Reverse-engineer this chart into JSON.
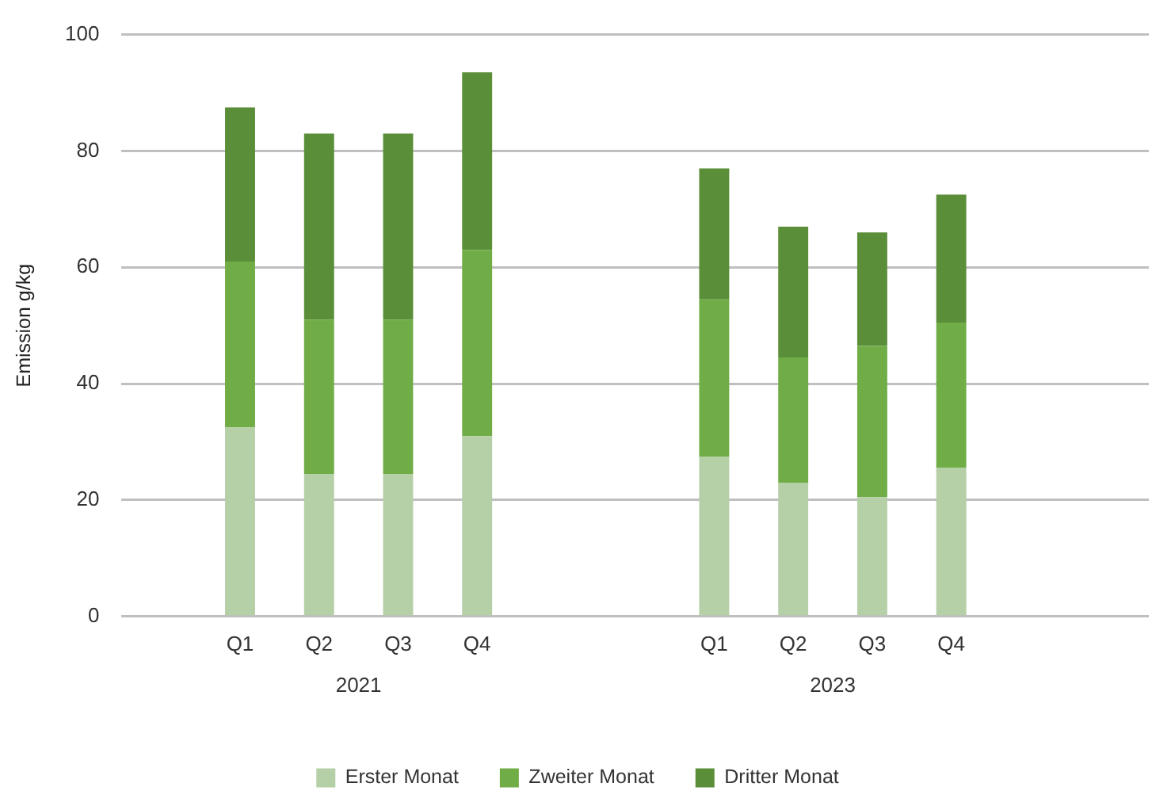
{
  "chart_data": {
    "type": "bar",
    "stacked": true,
    "ylabel": "Emission g/kg",
    "categories": [
      null,
      "Q1",
      "Q2",
      "Q3",
      "Q4",
      null,
      null,
      "Q1",
      "Q2",
      "Q3",
      "Q4",
      null,
      null
    ],
    "annotations": [
      "2021",
      "2023"
    ],
    "series": [
      {
        "name": "Erster Monat",
        "color": "#b5cfa7",
        "values": [
          null,
          32.5,
          24.5,
          24.5,
          31,
          null,
          null,
          27.5,
          23,
          20.5,
          25.5,
          null,
          null
        ]
      },
      {
        "name": "Zweiter Monat",
        "color": "#70ad47",
        "values": [
          null,
          28.5,
          26.5,
          26.5,
          32,
          null,
          null,
          27,
          21.5,
          26,
          25,
          null,
          null
        ]
      },
      {
        "name": "Dritter Monat",
        "color": "#5b8e38",
        "values": [
          null,
          26.5,
          32,
          32,
          30.5,
          null,
          null,
          22.5,
          22.5,
          19.5,
          22,
          null,
          null
        ]
      }
    ],
    "ylim": [
      0,
      100
    ],
    "yticks": [
      0,
      20,
      40,
      60,
      80,
      100
    ],
    "grid": "y",
    "legend": "bottom"
  }
}
